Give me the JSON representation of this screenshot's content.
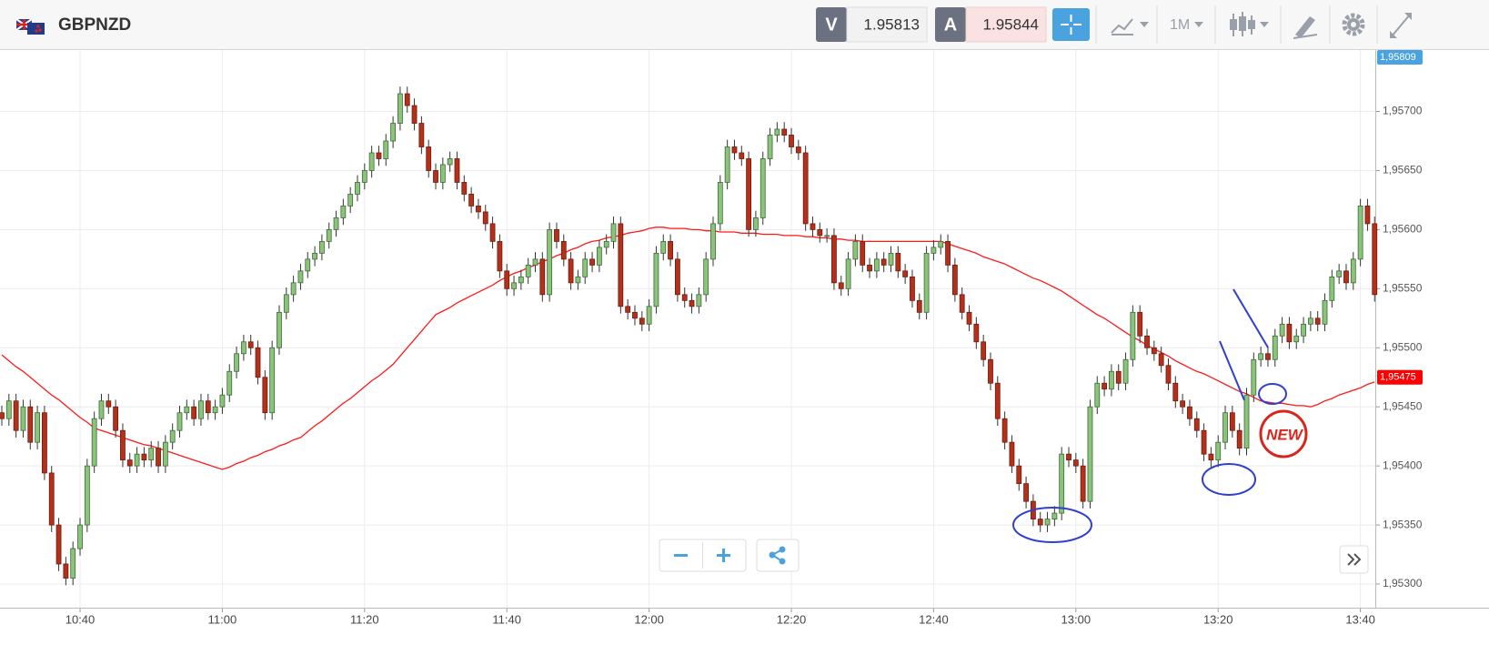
{
  "header": {
    "symbol": "GBPNZD",
    "sell_label": "V",
    "sell_price": "1.95813",
    "buy_label": "A",
    "buy_price": "1.95844",
    "timeframe": "1M"
  },
  "chart_data": {
    "type": "candlestick",
    "grid": true,
    "up_color": "#8cc37c",
    "down_color": "#b5301a",
    "categories": [
      null,
      null,
      null,
      null,
      null,
      null,
      null,
      null,
      null,
      null,
      null,
      "10:40",
      null,
      null,
      null,
      null,
      null,
      null,
      null,
      null,
      null,
      null,
      null,
      null,
      null,
      null,
      null,
      null,
      null,
      null,
      null,
      "11:00",
      null,
      null,
      null,
      null,
      null,
      null,
      null,
      null,
      null,
      null,
      null,
      null,
      null,
      null,
      null,
      null,
      null,
      null,
      null,
      "11:20",
      null,
      null,
      null,
      null,
      null,
      null,
      null,
      null,
      null,
      null,
      null,
      null,
      null,
      null,
      null,
      null,
      null,
      null,
      null,
      "11:40",
      null,
      null,
      null,
      null,
      null,
      null,
      null,
      null,
      null,
      null,
      null,
      null,
      null,
      null,
      null,
      null,
      null,
      null,
      null,
      "12:00",
      null,
      null,
      null,
      null,
      null,
      null,
      null,
      null,
      null,
      null,
      null,
      null,
      null,
      null,
      null,
      null,
      null,
      null,
      null,
      "12:20",
      null,
      null,
      null,
      null,
      null,
      null,
      null,
      null,
      null,
      null,
      null,
      null,
      null,
      null,
      null,
      null,
      null,
      null,
      null,
      "12:40",
      null,
      null,
      null,
      null,
      null,
      null,
      null,
      null,
      null,
      null,
      null,
      null,
      null,
      null,
      null,
      null,
      null,
      null,
      null,
      "13:00",
      null,
      null,
      null,
      null,
      null,
      null,
      null,
      null,
      null,
      null,
      null,
      null,
      null,
      null,
      null,
      null,
      null,
      null,
      null,
      "13:20",
      null,
      null,
      null,
      null,
      null,
      null,
      null,
      null,
      null,
      null,
      null,
      null,
      null,
      null,
      null,
      null,
      null,
      null,
      null,
      "13:40",
      null,
      null
    ],
    "open": [
      1.95445,
      1.9544,
      1.95455,
      1.9543,
      1.9545,
      1.9542,
      1.95445,
      1.95394,
      1.9535,
      1.95317,
      1.95305,
      1.9533,
      1.9535,
      1.954,
      1.9544,
      1.95455,
      1.9545,
      1.9543,
      1.95405,
      1.954,
      1.9541,
      1.95405,
      1.95415,
      1.954,
      1.9542,
      1.9543,
      1.95445,
      1.9545,
      1.9544,
      1.95455,
      1.95445,
      1.9545,
      1.9546,
      1.9548,
      1.95495,
      1.95505,
      1.955,
      1.95475,
      1.95445,
      1.955,
      1.9553,
      1.95545,
      1.95555,
      1.95565,
      1.95575,
      1.9558,
      1.9559,
      1.956,
      1.9561,
      1.9562,
      1.9563,
      1.9564,
      1.9565,
      1.95665,
      1.9566,
      1.95675,
      1.9569,
      1.95715,
      1.95705,
      1.9569,
      1.9567,
      1.9565,
      1.9564,
      1.95655,
      1.9566,
      1.9564,
      1.9563,
      1.9562,
      1.95615,
      1.95605,
      1.9559,
      1.95565,
      1.9555,
      1.95555,
      1.9556,
      1.9557,
      1.95575,
      1.95545,
      1.956,
      1.9559,
      1.95575,
      1.95555,
      1.9556,
      1.95575,
      1.9557,
      1.95585,
      1.9559,
      1.95605,
      1.95535,
      1.9553,
      1.95525,
      1.9552,
      1.95535,
      1.9558,
      1.9559,
      1.95575,
      1.95545,
      1.9554,
      1.95535,
      1.95545,
      1.95575,
      1.95605,
      1.9564,
      1.9567,
      1.95665,
      1.9566,
      1.956,
      1.9561,
      1.9566,
      1.9568,
      1.95685,
      1.9568,
      1.9567,
      1.95665,
      1.95605,
      1.956,
      1.95595,
      1.95595,
      1.95555,
      1.9555,
      1.95575,
      1.9559,
      1.9557,
      1.95565,
      1.95575,
      1.9557,
      1.9558,
      1.95565,
      1.9556,
      1.9554,
      1.9553,
      1.9558,
      1.95585,
      1.9559,
      1.9557,
      1.95545,
      1.9553,
      1.9552,
      1.95505,
      1.9549,
      1.9547,
      1.9544,
      1.9542,
      1.954,
      1.95385,
      1.9537,
      1.95355,
      1.9535,
      1.95355,
      1.9536,
      1.9541,
      1.95405,
      1.954,
      1.9537,
      1.9545,
      1.9547,
      1.95465,
      1.9548,
      1.9547,
      1.9549,
      1.9553,
      1.9551,
      1.955,
      1.95495,
      1.95485,
      1.9547,
      1.95455,
      1.9545,
      1.9544,
      1.9543,
      1.9541,
      1.95405,
      1.9542,
      1.95445,
      1.9543,
      1.95415,
      1.9546,
      1.9549,
      1.95495,
      1.9549,
      1.9551,
      1.9552,
      1.95505,
      1.9551,
      1.9552,
      1.95525,
      1.9552,
      1.9554,
      1.9556,
      1.95565,
      1.95555,
      1.95575,
      1.9562,
      1.95605
    ],
    "high": [
      1.95451,
      1.95461,
      1.95461,
      1.95456,
      1.95456,
      1.95451,
      1.95451,
      1.954,
      1.95356,
      1.95323,
      1.95336,
      1.95356,
      1.95406,
      1.95446,
      1.95461,
      1.95461,
      1.95456,
      1.95436,
      1.95411,
      1.95416,
      1.95416,
      1.95421,
      1.95421,
      1.95426,
      1.95436,
      1.95451,
      1.95456,
      1.95456,
      1.95461,
      1.95461,
      1.95456,
      1.95466,
      1.95486,
      1.95501,
      1.95511,
      1.95511,
      1.95506,
      1.95481,
      1.95506,
      1.95536,
      1.95551,
      1.95561,
      1.95571,
      1.95581,
      1.95586,
      1.95596,
      1.95606,
      1.95616,
      1.95626,
      1.95636,
      1.95646,
      1.95656,
      1.95671,
      1.95671,
      1.95681,
      1.95696,
      1.95721,
      1.95721,
      1.95711,
      1.95696,
      1.95676,
      1.95656,
      1.95661,
      1.95666,
      1.95666,
      1.95646,
      1.95636,
      1.95626,
      1.95621,
      1.95611,
      1.95596,
      1.95571,
      1.95561,
      1.95566,
      1.95576,
      1.95581,
      1.95581,
      1.95606,
      1.95606,
      1.95596,
      1.95581,
      1.95566,
      1.95581,
      1.95581,
      1.95591,
      1.95596,
      1.95611,
      1.95611,
      1.95541,
      1.95536,
      1.95531,
      1.95541,
      1.95586,
      1.95596,
      1.95596,
      1.95581,
      1.95551,
      1.95546,
      1.95551,
      1.95581,
      1.95611,
      1.95646,
      1.95676,
      1.95676,
      1.95671,
      1.95666,
      1.95616,
      1.95666,
      1.95686,
      1.95691,
      1.95691,
      1.95686,
      1.95676,
      1.95671,
      1.95611,
      1.95606,
      1.95601,
      1.95601,
      1.95561,
      1.95581,
      1.95596,
      1.95596,
      1.95576,
      1.95581,
      1.95581,
      1.95586,
      1.95586,
      1.95571,
      1.95566,
      1.95546,
      1.95586,
      1.95591,
      1.95596,
      1.95596,
      1.95576,
      1.95551,
      1.95536,
      1.95526,
      1.95511,
      1.95496,
      1.95476,
      1.95446,
      1.95426,
      1.95406,
      1.95391,
      1.95376,
      1.95361,
      1.95361,
      1.95366,
      1.95416,
      1.95416,
      1.95411,
      1.95406,
      1.95456,
      1.95476,
      1.95476,
      1.95486,
      1.95486,
      1.95496,
      1.95536,
      1.95536,
      1.95516,
      1.95506,
      1.95501,
      1.95491,
      1.95476,
      1.95461,
      1.95456,
      1.95446,
      1.95436,
      1.95416,
      1.95426,
      1.95451,
      1.95451,
      1.95436,
      1.95466,
      1.95496,
      1.95501,
      1.95501,
      1.95516,
      1.95526,
      1.95526,
      1.95516,
      1.95526,
      1.95531,
      1.95531,
      1.95546,
      1.95566,
      1.95571,
      1.95571,
      1.95581,
      1.95626,
      1.95626,
      1.95611
    ],
    "low": [
      1.95434,
      1.95434,
      1.95424,
      1.95424,
      1.95414,
      1.95414,
      1.95388,
      1.95344,
      1.95311,
      1.95299,
      1.95299,
      1.95324,
      1.95344,
      1.95394,
      1.95434,
      1.95444,
      1.95424,
      1.95399,
      1.95394,
      1.95394,
      1.95399,
      1.95399,
      1.95394,
      1.95394,
      1.95414,
      1.95424,
      1.95439,
      1.95434,
      1.95434,
      1.95439,
      1.95439,
      1.95444,
      1.95454,
      1.95474,
      1.95489,
      1.95494,
      1.95469,
      1.95439,
      1.95439,
      1.95494,
      1.95524,
      1.95539,
      1.95549,
      1.95559,
      1.95569,
      1.95574,
      1.95584,
      1.95594,
      1.95604,
      1.95614,
      1.95624,
      1.95634,
      1.95644,
      1.95654,
      1.95654,
      1.95669,
      1.95684,
      1.95699,
      1.95684,
      1.95664,
      1.95644,
      1.95634,
      1.95634,
      1.95649,
      1.95634,
      1.95624,
      1.95614,
      1.95609,
      1.95599,
      1.95584,
      1.95559,
      1.95544,
      1.95544,
      1.95549,
      1.95554,
      1.95564,
      1.95539,
      1.95539,
      1.95584,
      1.95569,
      1.95549,
      1.95549,
      1.95554,
      1.95564,
      1.95564,
      1.95579,
      1.95584,
      1.95529,
      1.95524,
      1.95519,
      1.95514,
      1.95514,
      1.95529,
      1.95574,
      1.95569,
      1.95539,
      1.95534,
      1.95529,
      1.95529,
      1.95539,
      1.95569,
      1.95599,
      1.95634,
      1.95659,
      1.95654,
      1.95594,
      1.95594,
      1.95604,
      1.95654,
      1.95674,
      1.95674,
      1.95664,
      1.95659,
      1.95599,
      1.95594,
      1.95589,
      1.95589,
      1.95549,
      1.95544,
      1.95544,
      1.95569,
      1.95564,
      1.95559,
      1.95559,
      1.95564,
      1.95564,
      1.95559,
      1.95554,
      1.95534,
      1.95524,
      1.95524,
      1.95574,
      1.95579,
      1.95564,
      1.95539,
      1.95524,
      1.95514,
      1.95499,
      1.95484,
      1.95464,
      1.95434,
      1.95414,
      1.95394,
      1.95379,
      1.95364,
      1.95349,
      1.95344,
      1.95344,
      1.95349,
      1.95354,
      1.95399,
      1.95394,
      1.95364,
      1.95364,
      1.95444,
      1.95459,
      1.95459,
      1.95464,
      1.95464,
      1.95484,
      1.95504,
      1.95494,
      1.95489,
      1.95479,
      1.95464,
      1.95449,
      1.95444,
      1.95434,
      1.95424,
      1.95404,
      1.95399,
      1.95399,
      1.95414,
      1.95424,
      1.95409,
      1.95409,
      1.95454,
      1.95484,
      1.95484,
      1.95484,
      1.95504,
      1.95499,
      1.95499,
      1.95504,
      1.95514,
      1.95514,
      1.95514,
      1.95534,
      1.95554,
      1.95549,
      1.95549,
      1.95569,
      1.95599,
      1.95539
    ],
    "close": [
      1.9544,
      1.95455,
      1.9543,
      1.9545,
      1.9542,
      1.95445,
      1.95394,
      1.9535,
      1.95317,
      1.95305,
      1.9533,
      1.9535,
      1.954,
      1.9544,
      1.95455,
      1.9545,
      1.9543,
      1.95405,
      1.954,
      1.9541,
      1.95405,
      1.95415,
      1.954,
      1.9542,
      1.9543,
      1.95445,
      1.9545,
      1.9544,
      1.95455,
      1.95445,
      1.9545,
      1.9546,
      1.9548,
      1.95495,
      1.95505,
      1.955,
      1.95475,
      1.95445,
      1.955,
      1.9553,
      1.95545,
      1.95555,
      1.95565,
      1.95575,
      1.9558,
      1.9559,
      1.956,
      1.9561,
      1.9562,
      1.9563,
      1.9564,
      1.9565,
      1.95665,
      1.9566,
      1.95675,
      1.9569,
      1.95715,
      1.95705,
      1.9569,
      1.9567,
      1.9565,
      1.9564,
      1.95655,
      1.9566,
      1.9564,
      1.9563,
      1.9562,
      1.95615,
      1.95605,
      1.9559,
      1.95565,
      1.9555,
      1.95555,
      1.9556,
      1.9557,
      1.95575,
      1.95545,
      1.956,
      1.9559,
      1.95575,
      1.95555,
      1.9556,
      1.95575,
      1.9557,
      1.95585,
      1.9559,
      1.95605,
      1.95535,
      1.9553,
      1.95525,
      1.9552,
      1.95535,
      1.9558,
      1.9559,
      1.95575,
      1.95545,
      1.9554,
      1.95535,
      1.95545,
      1.95575,
      1.95605,
      1.9564,
      1.9567,
      1.95665,
      1.9566,
      1.956,
      1.9561,
      1.9566,
      1.9568,
      1.95685,
      1.9568,
      1.9567,
      1.95665,
      1.95605,
      1.956,
      1.95595,
      1.95595,
      1.95555,
      1.9555,
      1.95575,
      1.9559,
      1.9557,
      1.95565,
      1.95575,
      1.9557,
      1.9558,
      1.95565,
      1.9556,
      1.9554,
      1.9553,
      1.9558,
      1.95585,
      1.9559,
      1.9557,
      1.95545,
      1.9553,
      1.9552,
      1.95505,
      1.9549,
      1.9547,
      1.9544,
      1.9542,
      1.954,
      1.95385,
      1.9537,
      1.95355,
      1.9535,
      1.95355,
      1.9536,
      1.9541,
      1.95405,
      1.954,
      1.9537,
      1.9545,
      1.9547,
      1.95465,
      1.9548,
      1.9547,
      1.9549,
      1.9553,
      1.9551,
      1.955,
      1.95495,
      1.95485,
      1.9547,
      1.95455,
      1.9545,
      1.9544,
      1.9543,
      1.9541,
      1.95405,
      1.9542,
      1.95445,
      1.9543,
      1.95415,
      1.9546,
      1.9549,
      1.95495,
      1.9549,
      1.9551,
      1.9552,
      1.95505,
      1.9551,
      1.9552,
      1.95525,
      1.9552,
      1.9554,
      1.9556,
      1.95565,
      1.95555,
      1.95575,
      1.9562,
      1.95605,
      1.95545
    ],
    "ma": {
      "color": "#ff1a1a",
      "values": [
        1.95494,
        1.95489,
        1.95484,
        1.9548,
        1.95475,
        1.9547,
        1.95465,
        1.9546,
        1.95456,
        1.95451,
        1.95446,
        1.95441,
        1.95437,
        1.95432,
        1.9543,
        1.95428,
        1.95426,
        1.95424,
        1.95422,
        1.9542,
        1.95418,
        1.95417,
        1.95415,
        1.95413,
        1.95411,
        1.95409,
        1.95407,
        1.95405,
        1.95403,
        1.95401,
        1.95399,
        1.95397,
        1.95399,
        1.95402,
        1.95404,
        1.95407,
        1.95409,
        1.95412,
        1.95414,
        1.95417,
        1.95419,
        1.95422,
        1.95424,
        1.95429,
        1.95434,
        1.95438,
        1.95443,
        1.95448,
        1.95453,
        1.95457,
        1.95462,
        1.95467,
        1.95472,
        1.95476,
        1.95481,
        1.95486,
        1.95493,
        1.955,
        1.95507,
        1.95514,
        1.95521,
        1.95528,
        1.95531,
        1.95534,
        1.95538,
        1.95541,
        1.95544,
        1.95547,
        1.9555,
        1.95553,
        1.95557,
        1.9556,
        1.95563,
        1.95565,
        1.95568,
        1.9557,
        1.95573,
        1.95575,
        1.95578,
        1.9558,
        1.95583,
        1.95585,
        1.95588,
        1.9559,
        1.95591,
        1.95593,
        1.95594,
        1.95595,
        1.95597,
        1.95598,
        1.95599,
        1.95601,
        1.95602,
        1.95602,
        1.95601,
        1.95601,
        1.95601,
        1.956,
        1.956,
        1.95599,
        1.95599,
        1.95598,
        1.95598,
        1.95598,
        1.95597,
        1.95597,
        1.95597,
        1.95596,
        1.95596,
        1.95596,
        1.95595,
        1.95595,
        1.95595,
        1.95594,
        1.95594,
        1.95593,
        1.95593,
        1.95592,
        1.95592,
        1.95591,
        1.95591,
        1.9559,
        1.9559,
        1.9559,
        1.9559,
        1.9559,
        1.9559,
        1.9559,
        1.9559,
        1.9559,
        1.9559,
        1.9559,
        1.9559,
        1.95588,
        1.95586,
        1.95584,
        1.95582,
        1.9558,
        1.95577,
        1.95575,
        1.95573,
        1.95571,
        1.95568,
        1.95565,
        1.95562,
        1.95559,
        1.95557,
        1.95554,
        1.95551,
        1.95548,
        1.95544,
        1.9554,
        1.95536,
        1.95532,
        1.95528,
        1.95525,
        1.95521,
        1.95517,
        1.95513,
        1.95509,
        1.95506,
        1.95502,
        1.95499,
        1.95496,
        1.95493,
        1.95489,
        1.95486,
        1.95483,
        1.9548,
        1.95478,
        1.95475,
        1.95472,
        1.95469,
        1.95466,
        1.95463,
        1.95461,
        1.95458,
        1.95455,
        1.95454,
        1.95453,
        1.95453,
        1.95452,
        1.95451,
        1.95451,
        1.9545,
        1.95452,
        1.95455,
        1.95457,
        1.9546,
        1.95462,
        1.95464,
        1.95466,
        1.95469,
        1.95471
      ]
    },
    "ylim": [
      1.9528,
      1.95752
    ],
    "yticks": [
      {
        "value": 1.953,
        "label": "1,95300"
      },
      {
        "value": 1.9535,
        "label": "1,95350"
      },
      {
        "value": 1.954,
        "label": "1,95400"
      },
      {
        "value": 1.9545,
        "label": "1,95450"
      },
      {
        "value": 1.955,
        "label": "1,95500"
      },
      {
        "value": 1.9555,
        "label": "1,95550"
      },
      {
        "value": 1.956,
        "label": "1,95600"
      },
      {
        "value": 1.9565,
        "label": "1,95650"
      },
      {
        "value": 1.957,
        "label": "1,95700"
      }
    ],
    "price_tags": [
      {
        "value": 1.95809,
        "label": "1,95809",
        "color": "#4aa3df"
      },
      {
        "value": 1.95475,
        "label": "1,95475",
        "color": "#ff0000"
      }
    ]
  },
  "annotations": {
    "badge": "NEW"
  }
}
